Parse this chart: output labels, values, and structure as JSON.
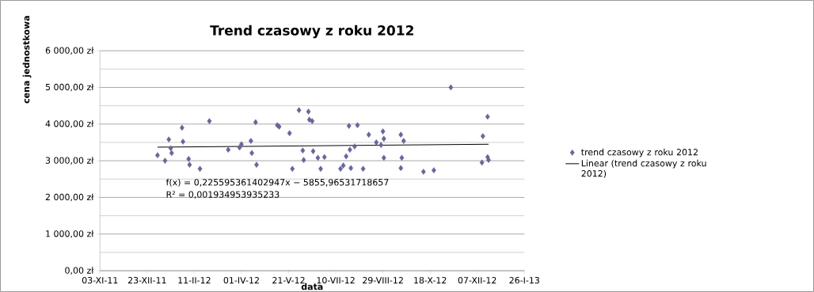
{
  "chart_data": {
    "type": "scatter",
    "title": "Trend czasowy z roku 2012",
    "xlabel": "data",
    "ylabel": "cena jednostkowa",
    "xlim": [
      "2011-11-03",
      "2013-01-26"
    ],
    "xticks": [
      {
        "value": "2011-11-03",
        "label": "03-XI-11"
      },
      {
        "value": "2011-12-23",
        "label": "23-XII-11"
      },
      {
        "value": "2012-02-11",
        "label": "11-II-12"
      },
      {
        "value": "2012-04-01",
        "label": "01-IV-12"
      },
      {
        "value": "2012-05-21",
        "label": "21-V-12"
      },
      {
        "value": "2012-07-10",
        "label": "10-VII-12"
      },
      {
        "value": "2012-08-29",
        "label": "29-VIII-12"
      },
      {
        "value": "2012-10-18",
        "label": "18-X-12"
      },
      {
        "value": "2012-12-07",
        "label": "07-XII-12"
      },
      {
        "value": "2013-01-26",
        "label": "26-I-13"
      }
    ],
    "ylim": [
      0,
      6000
    ],
    "yticks": [
      {
        "value": 0,
        "label": "0,00 zł"
      },
      {
        "value": 1000,
        "label": "1 000,00 zł"
      },
      {
        "value": 2000,
        "label": "2 000,00 zł"
      },
      {
        "value": 3000,
        "label": "3 000,00 zł"
      },
      {
        "value": 4000,
        "label": "4 000,00 zł"
      },
      {
        "value": 5000,
        "label": "5 000,00 zł"
      },
      {
        "value": 6000,
        "label": "6 000,00 zł"
      }
    ],
    "grid": "y",
    "legend": "right",
    "marker": "diamond",
    "series": [
      {
        "name": "trend czasowy z roku 2012",
        "color": "#666699",
        "x": [
          "2012-01-03",
          "2012-01-11",
          "2012-01-15",
          "2012-01-17",
          "2012-01-18",
          "2012-01-29",
          "2012-01-30",
          "2012-02-05",
          "2012-02-06",
          "2012-02-17",
          "2012-02-27",
          "2012-03-18",
          "2012-03-30",
          "2012-04-01",
          "2012-04-11",
          "2012-04-12",
          "2012-04-16",
          "2012-04-17",
          "2012-05-09",
          "2012-05-11",
          "2012-05-22",
          "2012-05-25",
          "2012-06-01",
          "2012-06-05",
          "2012-06-06",
          "2012-06-11",
          "2012-06-12",
          "2012-06-15",
          "2012-06-16",
          "2012-06-21",
          "2012-06-24",
          "2012-06-28",
          "2012-07-15",
          "2012-07-18",
          "2012-07-21",
          "2012-07-24",
          "2012-07-25",
          "2012-07-26",
          "2012-07-30",
          "2012-08-02",
          "2012-08-08",
          "2012-08-14",
          "2012-08-22",
          "2012-08-27",
          "2012-08-29",
          "2012-08-30",
          "2012-08-30",
          "2012-09-17",
          "2012-09-17",
          "2012-09-20",
          "2012-09-18",
          "2012-10-11",
          "2012-10-22",
          "2012-11-09",
          "2012-12-12",
          "2012-12-13",
          "2012-12-18",
          "2012-12-18",
          "2012-12-19"
        ],
        "values": [
          3150,
          3000,
          3580,
          3340,
          3210,
          3900,
          3520,
          3050,
          2890,
          2780,
          4080,
          3300,
          3360,
          3450,
          3540,
          3210,
          4050,
          2890,
          3970,
          3930,
          3750,
          2780,
          4380,
          3280,
          3020,
          4340,
          4120,
          4080,
          3260,
          3080,
          2780,
          3100,
          2780,
          2870,
          3120,
          3950,
          3300,
          2800,
          3390,
          3970,
          2780,
          3710,
          3500,
          3430,
          3800,
          3600,
          3080,
          3710,
          2800,
          3540,
          3080,
          2700,
          2740,
          5000,
          2950,
          3670,
          3100,
          4200,
          3020
        ]
      },
      {
        "name": "Linear (trend czasowy z roku 2012)",
        "color": "#000000",
        "type": "line",
        "marker": "none",
        "x": [
          "2012-01-03",
          "2012-12-19"
        ],
        "values": [
          3370,
          3450
        ]
      }
    ],
    "annotations": [
      "f(x) = 0,225595361402947x − 5855,96531718657",
      "R² = 0,001934953935233"
    ]
  }
}
